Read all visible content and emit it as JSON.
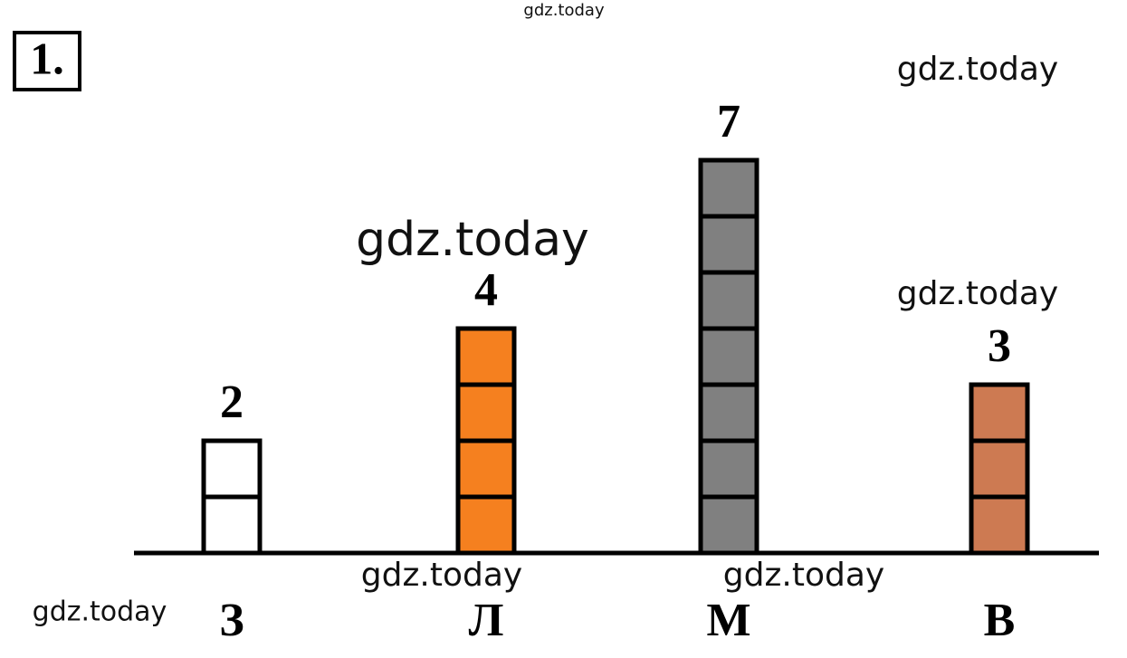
{
  "chart_data": {
    "type": "pictogram_bar",
    "label": "1.",
    "categories": [
      "З",
      "Л",
      "М",
      "В"
    ],
    "values": [
      2,
      4,
      7,
      3
    ],
    "colors": [
      "#ffffff",
      "#f5801f",
      "#808080",
      "#cd7a52"
    ]
  },
  "watermarks": [
    "gdz.today",
    "gdz.today",
    "gdz.today",
    "gdz.today",
    "gdz.today",
    "gdz.today",
    "gdz.today"
  ]
}
